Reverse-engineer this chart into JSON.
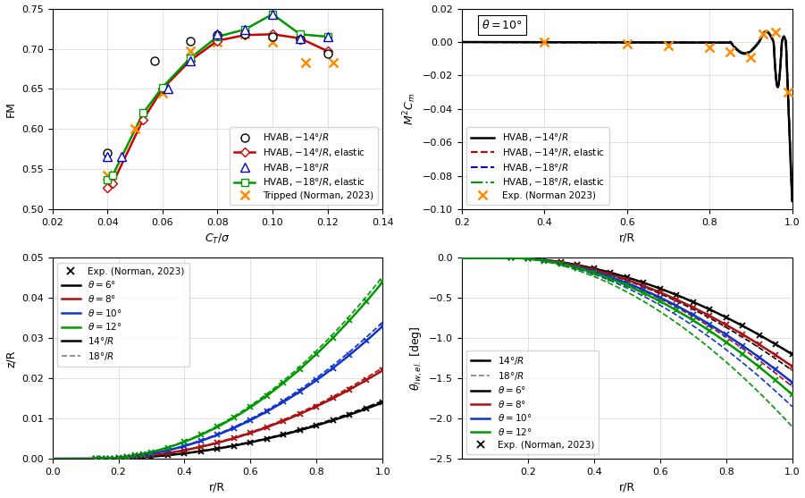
{
  "fig_width": 9.01,
  "fig_height": 5.57,
  "dpi": 100,
  "ax1": {
    "xlim": [
      0.02,
      0.14
    ],
    "ylim": [
      0.5,
      0.75
    ],
    "xticks": [
      0.02,
      0.04,
      0.06,
      0.08,
      0.1,
      0.12,
      0.14
    ],
    "yticks": [
      0.5,
      0.55,
      0.6,
      0.65,
      0.7,
      0.75
    ],
    "exp14_x": [
      0.04,
      0.057,
      0.07,
      0.08,
      0.09,
      0.1,
      0.11,
      0.12
    ],
    "exp14_y": [
      0.57,
      0.685,
      0.71,
      0.717,
      0.718,
      0.715,
      0.712,
      0.694
    ],
    "exp18_x": [
      0.04,
      0.045,
      0.062,
      0.07,
      0.08,
      0.09,
      0.1,
      0.11,
      0.12
    ],
    "exp18_y": [
      0.566,
      0.566,
      0.65,
      0.685,
      0.718,
      0.724,
      0.743,
      0.713,
      0.715
    ],
    "elastic14_x": [
      0.04,
      0.042,
      0.053,
      0.06,
      0.07,
      0.08,
      0.09,
      0.1,
      0.11,
      0.12
    ],
    "elastic14_y": [
      0.527,
      0.533,
      0.612,
      0.65,
      0.685,
      0.71,
      0.717,
      0.718,
      0.713,
      0.697
    ],
    "elastic18_x": [
      0.04,
      0.042,
      0.053,
      0.06,
      0.07,
      0.08,
      0.09,
      0.1,
      0.11,
      0.12
    ],
    "elastic18_y": [
      0.537,
      0.543,
      0.62,
      0.652,
      0.688,
      0.715,
      0.724,
      0.743,
      0.718,
      0.715
    ],
    "tripped_x": [
      0.04,
      0.05,
      0.06,
      0.07,
      0.08,
      0.09,
      0.1,
      0.112,
      0.122
    ],
    "tripped_y": [
      0.543,
      0.6,
      0.645,
      0.697,
      0.708,
      0.718,
      0.708,
      0.683,
      0.683
    ],
    "color_14": "#000000",
    "color_14e": "#cc0000",
    "color_18": "#0000cc",
    "color_18e": "#009900",
    "color_tripped": "#ff8c00"
  },
  "ax2": {
    "xlim": [
      0.2,
      1.0
    ],
    "ylim": [
      -0.1,
      0.02
    ],
    "xticks": [
      0.2,
      0.4,
      0.6,
      0.8,
      1.0
    ],
    "yticks": [
      -0.1,
      -0.08,
      -0.06,
      -0.04,
      -0.02,
      0.0,
      0.02
    ],
    "exp_x": [
      0.4,
      0.6,
      0.7,
      0.8,
      0.85,
      0.9,
      0.93,
      0.96,
      0.99
    ],
    "exp_y": [
      0.0,
      -0.001,
      -0.002,
      -0.003,
      -0.006,
      -0.009,
      0.005,
      0.006,
      -0.03
    ],
    "color_14": "#000000",
    "color_14e": "#cc0000",
    "color_18": "#0000cc",
    "color_18e": "#009900",
    "color_exp": "#ff8c00"
  },
  "ax3": {
    "xlim": [
      0,
      1.0
    ],
    "ylim": [
      0,
      0.05
    ],
    "xticks": [
      0,
      0.2,
      0.4,
      0.6,
      0.8,
      1.0
    ],
    "yticks": [
      0.0,
      0.01,
      0.02,
      0.03,
      0.04,
      0.05
    ],
    "color_6": "#000000",
    "color_8": "#aa1111",
    "color_10": "#1133cc",
    "color_12": "#009900"
  },
  "ax4": {
    "xlim": [
      0.0,
      1.0
    ],
    "ylim": [
      -2.5,
      0.0
    ],
    "xticks": [
      0.2,
      0.4,
      0.6,
      0.8,
      1.0
    ],
    "yticks": [
      -2.5,
      -2.0,
      -1.5,
      -1.0,
      -0.5,
      0.0
    ],
    "color_6": "#000000",
    "color_8": "#aa1111",
    "color_10": "#1133cc",
    "color_12": "#009900"
  }
}
